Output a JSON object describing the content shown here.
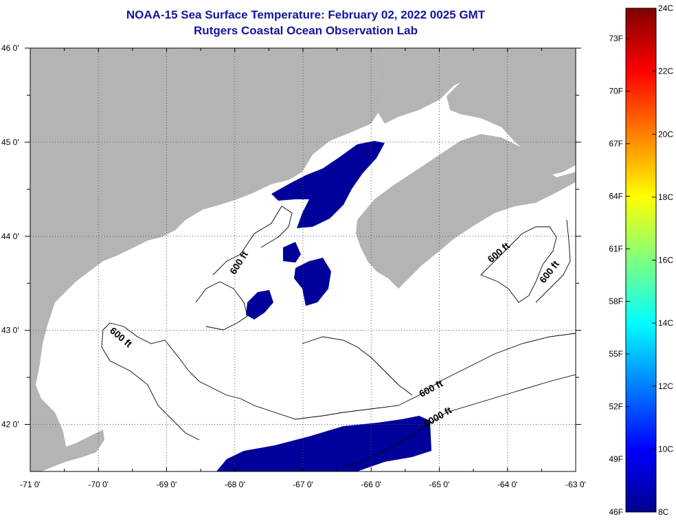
{
  "title": {
    "line1": "NOAA-15 Sea Surface Temperature:  February 02, 2022 0025 GMT",
    "line2": "Rutgers Coastal Ocean Observation Lab"
  },
  "map": {
    "lon_range": [
      -71,
      -63
    ],
    "lat_range": [
      41.5,
      46
    ],
    "lon_ticks": [
      {
        "v": -71,
        "label": "-71 0'"
      },
      {
        "v": -70,
        "label": "-70 0'"
      },
      {
        "v": -69,
        "label": "-69 0'"
      },
      {
        "v": -68,
        "label": "-68 0'"
      },
      {
        "v": -67,
        "label": "-67 0'"
      },
      {
        "v": -66,
        "label": "-66 0'"
      },
      {
        "v": -65,
        "label": "-65 0'"
      },
      {
        "v": -64,
        "label": "-64 0'"
      },
      {
        "v": -63,
        "label": "-63 0'"
      }
    ],
    "lat_ticks": [
      {
        "v": 46,
        "label": "46 0'"
      },
      {
        "v": 45,
        "label": "45 0'"
      },
      {
        "v": 44,
        "label": "44 0'"
      },
      {
        "v": 43,
        "label": "43 0'"
      },
      {
        "v": 42,
        "label": "42 0'"
      }
    ],
    "colors": {
      "land": "#b4b4b4",
      "ocean": "#ffffff",
      "sst_cold": "#00009a",
      "contour": "#000000",
      "grid": "#555555"
    },
    "contour_labels": [
      {
        "text": "600 ft",
        "lon": -67.9,
        "lat": 43.7,
        "angle": -58
      },
      {
        "text": "600 ft",
        "lon": -69.7,
        "lat": 42.9,
        "angle": 40
      },
      {
        "text": "600 ft",
        "lon": -64.1,
        "lat": 43.8,
        "angle": -40
      },
      {
        "text": "600 ft",
        "lon": -63.35,
        "lat": 43.6,
        "angle": -52
      },
      {
        "text": "600 ft",
        "lon": -65.1,
        "lat": 42.35,
        "angle": -28
      },
      {
        "text": "6000 ft",
        "lon": -65.0,
        "lat": 42.05,
        "angle": -30
      }
    ]
  },
  "colorbar": {
    "f_labels": [
      "73F",
      "70F",
      "67F",
      "64F",
      "61F",
      "58F",
      "55F",
      "52F",
      "49F",
      "46F"
    ],
    "c_labels": [
      "24C",
      "22C",
      "20C",
      "18C",
      "16C",
      "14C",
      "12C",
      "10C",
      "8C"
    ]
  }
}
